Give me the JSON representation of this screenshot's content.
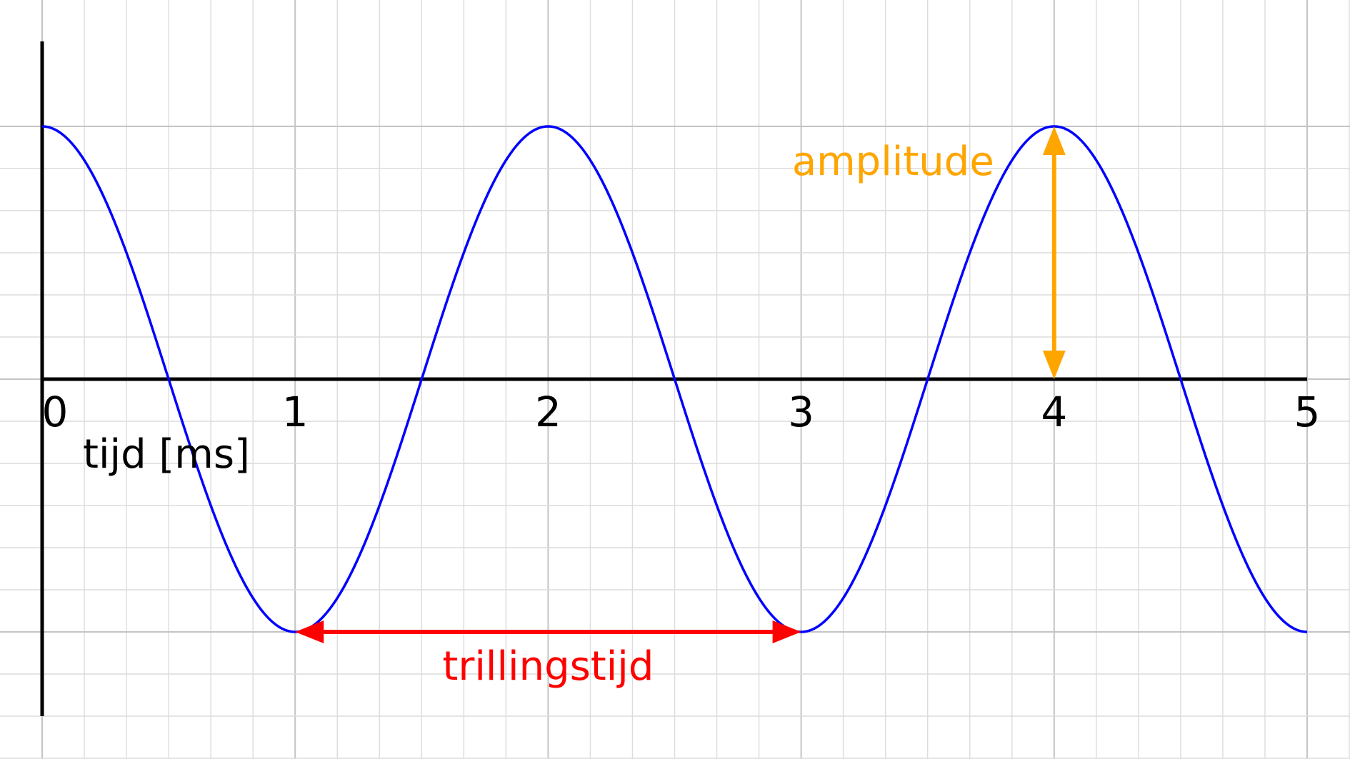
{
  "chart_data": {
    "type": "line",
    "title": "",
    "xlabel": "tijd [ms]",
    "ylabel": "",
    "xlim": [
      0,
      5
    ],
    "ylim": [
      -1,
      1
    ],
    "x_ticks": [
      0,
      1,
      2,
      3,
      4,
      5
    ],
    "x_tick_labels": [
      "0",
      "1",
      "2",
      "3",
      "4",
      "5"
    ],
    "grid": true,
    "series": [
      {
        "color": "#0000ff",
        "function": "cosine",
        "amplitude": 1,
        "period": 2,
        "x_start": 0,
        "x_end": 5
      }
    ],
    "annotations": [
      {
        "text": "amplitude",
        "color": "#ffa500",
        "arrow": "double-vertical",
        "from": [
          4,
          0
        ],
        "to": [
          4,
          1
        ]
      },
      {
        "text": "trillingstijd",
        "color": "#ff0000",
        "arrow": "double-horizontal",
        "from": [
          1,
          -1
        ],
        "to": [
          3,
          -1
        ]
      }
    ]
  }
}
